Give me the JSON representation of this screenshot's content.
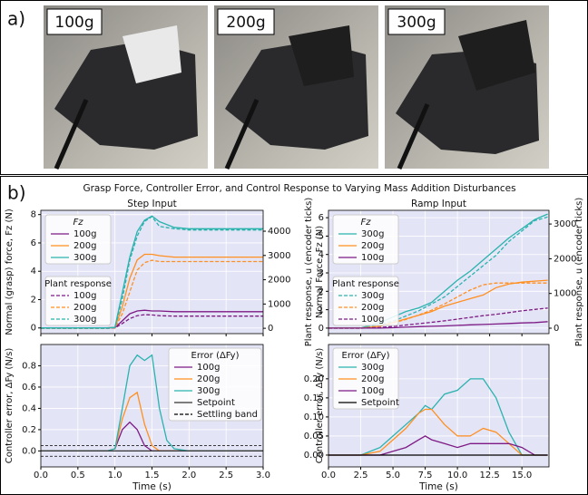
{
  "panel_labels": [
    "a)",
    "b)"
  ],
  "photos": [
    {
      "label": "100g"
    },
    {
      "label": "200g"
    },
    {
      "label": "300g"
    }
  ],
  "figure_title": "Grasp Force, Controller Error, and Control Response to Varying Mass Addition Disturbances",
  "chart_data": [
    {
      "type": "line",
      "title": "Step Input",
      "ylabel": "Normal (grasp) force, Fz (N)",
      "y2label": "Plant response, u (encoder ticks)",
      "legend_title": "Fz",
      "legend2_title": "Plant response",
      "x": [
        0,
        0.5,
        0.9,
        1.0,
        1.1,
        1.2,
        1.3,
        1.4,
        1.5,
        1.6,
        1.8,
        2.0,
        2.5,
        3.0
      ],
      "xlim": [
        0,
        3
      ],
      "xticks": [
        0,
        0.5,
        1,
        1.5,
        2,
        2.5,
        3
      ],
      "ylim": [
        -0.4,
        8.3
      ],
      "yticks": [
        0,
        2,
        4,
        6,
        8
      ],
      "y2lim": [
        -220,
        4860
      ],
      "y2ticks": [
        0,
        1000,
        2000,
        3000,
        4000
      ],
      "grid": true,
      "series": [
        {
          "name": "100g",
          "color": "#7d1a84",
          "values": [
            0,
            0,
            0,
            0.02,
            0.5,
            1.0,
            1.2,
            1.25,
            1.2,
            1.2,
            1.15,
            1.15,
            1.15,
            1.15
          ]
        },
        {
          "name": "200g",
          "color": "#ff8f1f",
          "values": [
            0,
            0,
            0,
            0.05,
            1.5,
            3.5,
            4.8,
            5.2,
            5.2,
            5.1,
            5.0,
            5.0,
            5.0,
            5.0
          ]
        },
        {
          "name": "300g",
          "color": "#2ab3ad",
          "values": [
            0,
            0,
            0,
            0.05,
            2.5,
            5.0,
            6.8,
            7.6,
            7.9,
            7.5,
            7.1,
            7.0,
            7.0,
            7.0
          ]
        },
        {
          "name": "100g",
          "color": "#7d1a84",
          "axis": "y2",
          "values": [
            0,
            0,
            0,
            10,
            200,
            400,
            520,
            560,
            550,
            520,
            500,
            500,
            500,
            500
          ]
        },
        {
          "name": "200g",
          "color": "#ff8f1f",
          "axis": "y2",
          "values": [
            0,
            0,
            0,
            20,
            600,
            1500,
            2400,
            2700,
            2800,
            2750,
            2750,
            2750,
            2750,
            2750
          ]
        },
        {
          "name": "300g",
          "color": "#2ab3ad",
          "axis": "y2",
          "values": [
            0,
            0,
            0,
            30,
            1200,
            2800,
            3800,
            4400,
            4600,
            4200,
            4100,
            4050,
            4050,
            4050
          ]
        }
      ]
    },
    {
      "type": "line",
      "xlabel": "Time (s)",
      "ylabel": "Controller error, ΔFy (N/s)",
      "legend_title": "Error (ΔFy)",
      "x": [
        0,
        0.9,
        1.0,
        1.1,
        1.2,
        1.3,
        1.4,
        1.5,
        1.6,
        1.7,
        1.8,
        2.0,
        2.5,
        3.0
      ],
      "xlim": [
        0,
        3
      ],
      "xticks": [
        {
          "value": 0,
          "label": "0.0"
        },
        0.5,
        {
          "value": 1,
          "label": "1.0"
        },
        1.5,
        {
          "value": 2,
          "label": "2.0"
        },
        2.5,
        {
          "value": 3,
          "label": "3.0"
        }
      ],
      "ylim": [
        -0.15,
        1.0
      ],
      "yticks": [
        {
          "value": 0,
          "label": "0.0"
        },
        0.2,
        0.4,
        0.6,
        0.8
      ],
      "grid": true,
      "series": [
        {
          "name": "100g",
          "color": "#7d1a84",
          "values": [
            0,
            0,
            0.02,
            0.2,
            0.27,
            0.2,
            0.05,
            0,
            0,
            0,
            0,
            0,
            0,
            0
          ]
        },
        {
          "name": "200g",
          "color": "#ff8f1f",
          "values": [
            0,
            0,
            0.02,
            0.3,
            0.5,
            0.55,
            0.25,
            0.05,
            0,
            0,
            0,
            0,
            0,
            0
          ]
        },
        {
          "name": "300g",
          "color": "#2ab3ad",
          "values": [
            0,
            0,
            0.02,
            0.4,
            0.8,
            0.9,
            0.85,
            0.9,
            0.4,
            0.1,
            0.02,
            0,
            0,
            0
          ]
        },
        {
          "name": "Setpoint",
          "color": "#333333",
          "values": [
            0,
            0,
            0,
            0,
            0,
            0,
            0,
            0,
            0,
            0,
            0,
            0,
            0,
            0
          ]
        }
      ],
      "bands": [
        {
          "name": "Settling band",
          "color": "#000000",
          "values": [
            -0.05,
            0.05
          ]
        }
      ]
    },
    {
      "type": "line",
      "title": "Ramp Input",
      "ylabel": "Normal Force, Fz (N)",
      "y2label": "Plant response, u (encoder ticks)",
      "legend_title": "Fz",
      "legend2_title": "Plant response",
      "x": [
        0,
        2.5,
        4,
        5,
        6,
        7,
        8,
        9,
        10,
        11,
        12,
        13,
        14,
        15,
        16,
        17
      ],
      "xlim": [
        0,
        17.1
      ],
      "xticks": [
        0,
        2.5,
        5,
        7.5,
        10,
        12.5,
        15
      ],
      "ylim": [
        -0.3,
        6.4
      ],
      "yticks": [
        0,
        1,
        2,
        3,
        4,
        5,
        6
      ],
      "y2lim": [
        -157,
        3394
      ],
      "y2ticks": [
        0,
        1000,
        2000,
        3000
      ],
      "grid": true,
      "series": [
        {
          "name": "300g",
          "color": "#2ab3ad",
          "values": [
            0,
            0,
            0.3,
            0.6,
            0.9,
            1.1,
            1.4,
            2.0,
            2.6,
            3.1,
            3.7,
            4.3,
            4.9,
            5.4,
            5.9,
            6.2
          ]
        },
        {
          "name": "200g",
          "color": "#ff8f1f",
          "values": [
            0,
            0,
            0.1,
            0.3,
            0.5,
            0.7,
            0.9,
            1.2,
            1.4,
            1.6,
            1.8,
            2.2,
            2.4,
            2.5,
            2.55,
            2.6
          ]
        },
        {
          "name": "100g",
          "color": "#7d1a84",
          "values": [
            0,
            0,
            0,
            0.02,
            0.05,
            0.08,
            0.1,
            0.12,
            0.15,
            0.18,
            0.2,
            0.22,
            0.25,
            0.28,
            0.3,
            0.35
          ]
        },
        {
          "name": "300g",
          "color": "#2ab3ad",
          "axis": "y2",
          "values": [
            0,
            0,
            100,
            200,
            350,
            500,
            700,
            900,
            1200,
            1500,
            1800,
            2100,
            2500,
            2800,
            3100,
            3200
          ]
        },
        {
          "name": "200g",
          "color": "#ff8f1f",
          "axis": "y2",
          "values": [
            0,
            0,
            60,
            150,
            250,
            380,
            520,
            700,
            900,
            1100,
            1250,
            1300,
            1300,
            1300,
            1300,
            1300
          ]
        },
        {
          "name": "100g",
          "color": "#7d1a84",
          "axis": "y2",
          "values": [
            0,
            0,
            20,
            50,
            90,
            130,
            170,
            210,
            260,
            310,
            360,
            400,
            450,
            500,
            540,
            580
          ]
        }
      ]
    },
    {
      "type": "line",
      "xlabel": "Time (s)",
      "ylabel": "Controller error, ΔFy (N/s)",
      "legend_title": "Error (ΔFy)",
      "x": [
        0,
        2.5,
        4,
        5,
        6,
        7,
        7.5,
        8,
        9,
        10,
        11,
        12,
        13,
        14,
        15,
        16,
        17
      ],
      "xlim": [
        0,
        17.1
      ],
      "xticks": [
        {
          "value": 0,
          "label": "0.0"
        },
        2.5,
        {
          "value": 5,
          "label": "5.0"
        },
        7.5,
        {
          "value": 10,
          "label": "10.0"
        },
        12.5,
        {
          "value": 15,
          "label": "15.0"
        }
      ],
      "ylim": [
        -0.031,
        0.29
      ],
      "yticks": [
        {
          "value": 0,
          "label": "0.00"
        },
        0.05,
        {
          "value": 0.1,
          "label": "0.10"
        },
        0.15,
        {
          "value": 0.2,
          "label": "0.20"
        }
      ],
      "grid": true,
      "series": [
        {
          "name": "300g",
          "color": "#2ab3ad",
          "values": [
            0,
            0,
            0.02,
            0.05,
            0.08,
            0.11,
            0.13,
            0.12,
            0.16,
            0.17,
            0.2,
            0.2,
            0.15,
            0.06,
            0,
            0,
            0
          ]
        },
        {
          "name": "200g",
          "color": "#ff8f1f",
          "values": [
            0,
            0,
            0.01,
            0.04,
            0.07,
            0.11,
            0.12,
            0.12,
            0.08,
            0.05,
            0.05,
            0.07,
            0.06,
            0.03,
            0,
            0,
            0
          ]
        },
        {
          "name": "100g",
          "color": "#7d1a84",
          "values": [
            0,
            0,
            0,
            0.01,
            0.02,
            0.04,
            0.05,
            0.04,
            0.03,
            0.02,
            0.03,
            0.03,
            0.03,
            0.03,
            0.02,
            0,
            0
          ]
        },
        {
          "name": "Setpoint",
          "color": "#000000",
          "values": [
            0,
            0,
            0,
            0,
            0,
            0,
            0,
            0,
            0,
            0,
            0,
            0,
            0,
            0,
            0,
            0,
            0
          ]
        }
      ]
    }
  ]
}
